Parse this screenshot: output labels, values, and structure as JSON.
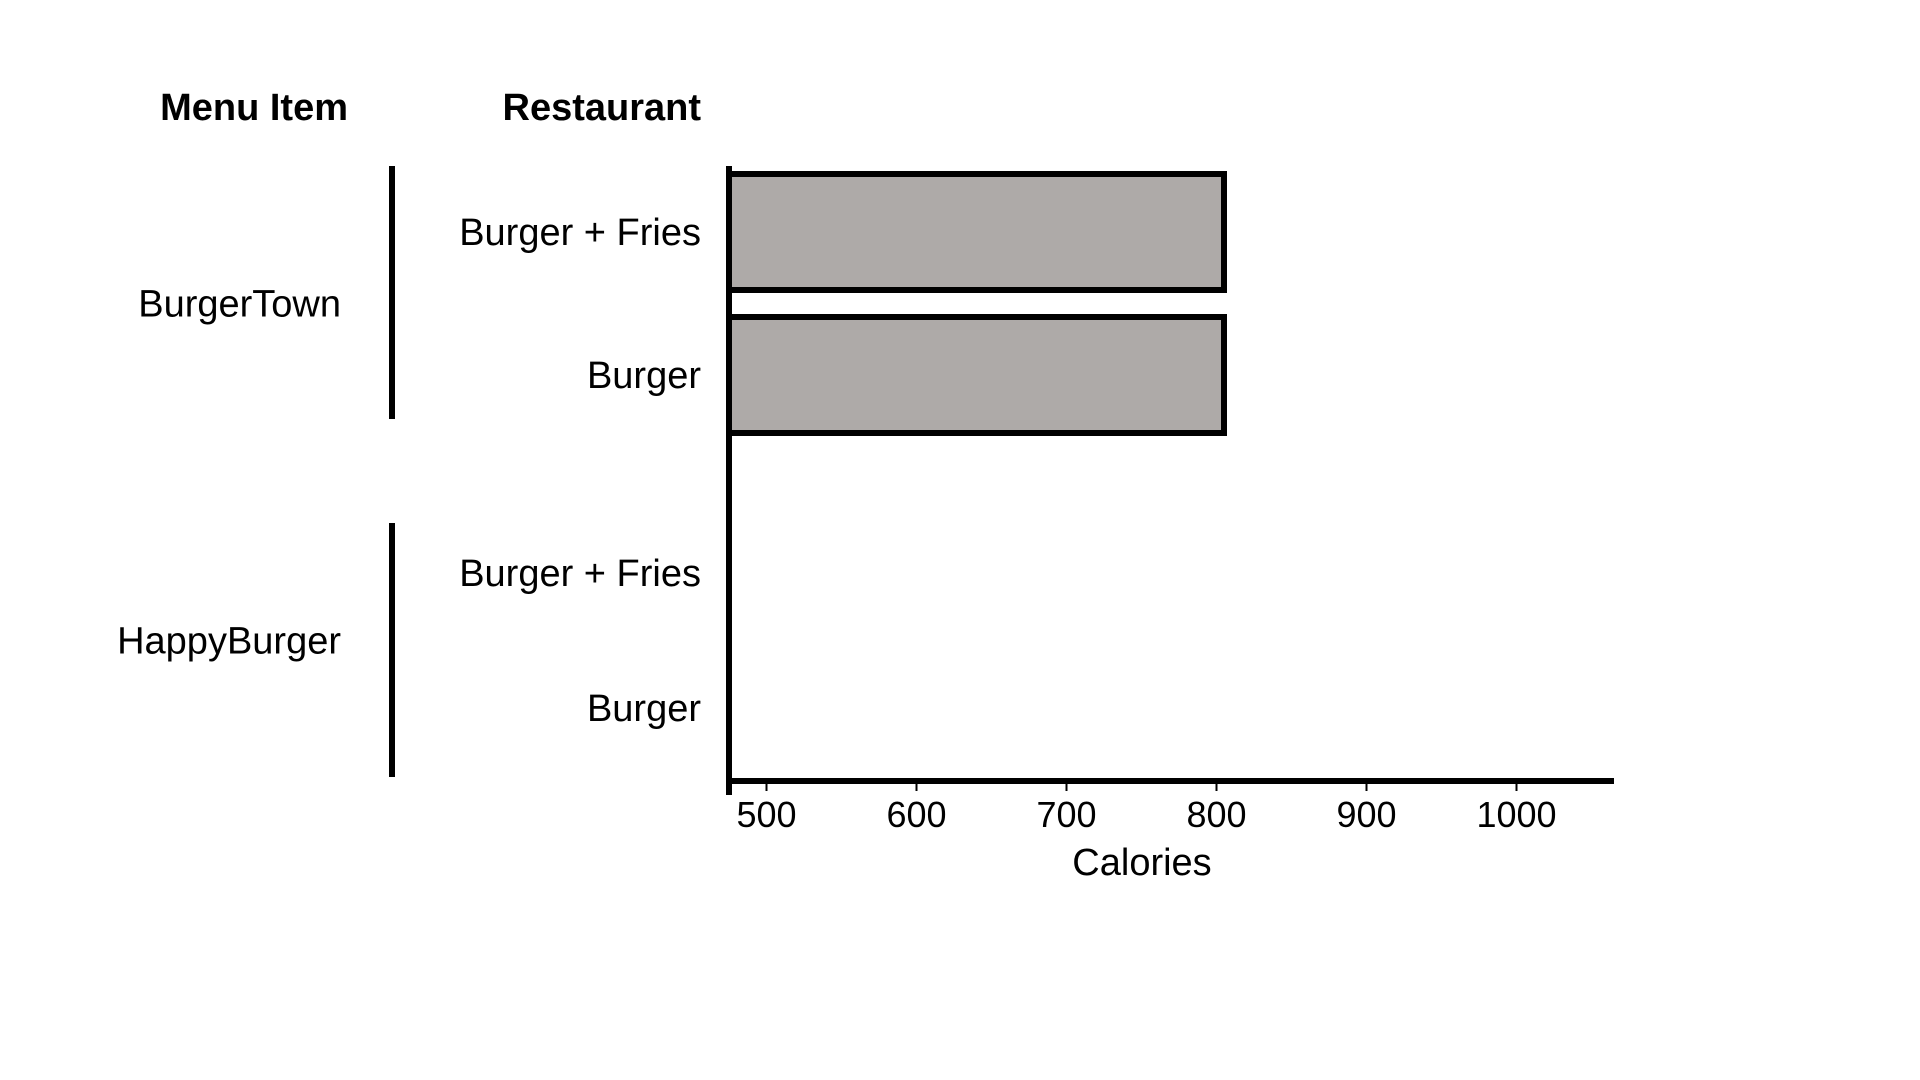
{
  "chart_data": {
    "type": "bar",
    "orientation": "horizontal",
    "column_headers": {
      "group": "Menu Item",
      "category": "Restaurant"
    },
    "groups": [
      {
        "name": "BurgerTown",
        "categories": [
          "Burger + Fries",
          "Burger"
        ],
        "values": [
          805,
          805
        ]
      },
      {
        "name": "HappyBurger",
        "categories": [
          "Burger + Fries",
          "Burger"
        ],
        "values": [
          null,
          null
        ]
      }
    ],
    "xlabel": "Calories",
    "xlim": [
      475,
      1065
    ],
    "xticks": [
      "500",
      "600",
      "700",
      "800",
      "900",
      "1000"
    ],
    "bar_color": "#aeaaa8",
    "bar_edge_color": "#000000",
    "grid": false
  }
}
